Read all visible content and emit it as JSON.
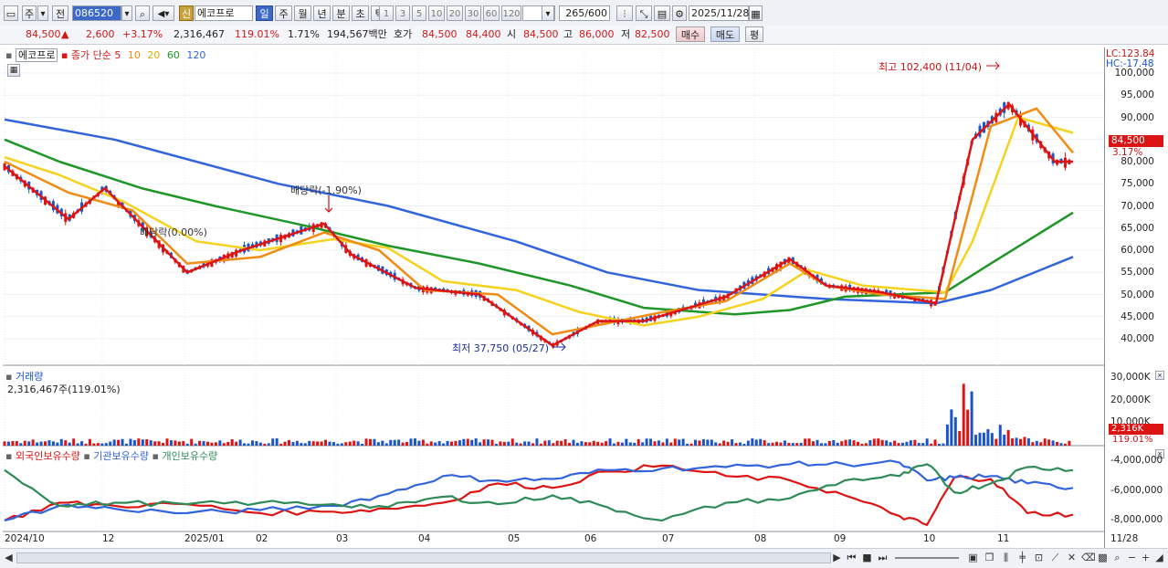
{
  "toolbar": {
    "period_label": "주",
    "price_type_label": "전",
    "code": "086520",
    "badge": "신",
    "name": "에코프로",
    "tabs": [
      "일",
      "주",
      "월",
      "년",
      "분",
      "초",
      "틱"
    ],
    "active_tab": "일",
    "tick_buttons": [
      "1",
      "3",
      "5",
      "10",
      "20",
      "30",
      "60",
      "120"
    ],
    "count": "265",
    "count_total": "/600",
    "date": "2025/11/28"
  },
  "quote": {
    "price": "84,500",
    "change": "2,600",
    "change_pct": "+3.17%",
    "volume": "2,316,467",
    "volume_pct": "119.01%",
    "turnover_pct": "1.71%",
    "amount": "194,567백만",
    "hoga_label": "호가",
    "ask": "84,500",
    "bid": "84,400",
    "open_label": "시",
    "open": "84,500",
    "high_label": "고",
    "high": "86,000",
    "low_label": "저",
    "low": "82,500",
    "buy_label": "매수",
    "sell_label": "매도",
    "avg_label": "평"
  },
  "price_panel": {
    "name_tag": "에코프로",
    "legend_prefix": "종가 단순",
    "ma_periods": [
      "5",
      "10",
      "20",
      "60",
      "120"
    ],
    "ma_colors": [
      "#dc1414",
      "#f08c14",
      "#f5d21e",
      "#1e9628",
      "#3264dc"
    ],
    "lc": "LC:123.84",
    "hc": "HC:-17.48",
    "current_tag": "84,500",
    "current_pct": "3.17%",
    "annot_high": "최고 102,400 (11/04)",
    "annot_low": "최저 37,750 (05/27)",
    "annot_div1": "배당락(-1.90%)",
    "annot_div2": "배당락(0.00%)",
    "y_labels": [
      "100,000",
      "95,000",
      "90,000",
      "85,000",
      "80,000",
      "75,000",
      "70,000",
      "65,000",
      "60,000",
      "55,000",
      "50,000",
      "45,000",
      "40,000"
    ]
  },
  "volume_panel": {
    "title": "거래량",
    "value": "2,316,467주(119.01%)",
    "y_labels": [
      "30,000K",
      "20,000K",
      "10,000K"
    ],
    "current_tag": "2,316K",
    "current_pct": "119.01%"
  },
  "holdings_panel": {
    "legend": [
      "외국인보유수량",
      "기관보유수량",
      "개인보유수량"
    ],
    "colors": [
      "#dc1414",
      "#3264dc",
      "#2e8b57"
    ],
    "y_labels": [
      "-4,000,000",
      "-6,000,000",
      "-8,000,000"
    ]
  },
  "x_axis": {
    "labels": [
      "2024/10",
      "12",
      "2025/01",
      "02",
      "03",
      "04",
      "05",
      "06",
      "07",
      "08",
      "09",
      "10",
      "11"
    ],
    "end_label": "11/28"
  },
  "chart_data": {
    "type": "line",
    "series": [
      {
        "name": "120",
        "values": [
          [
            0,
            89500
          ],
          [
            120,
            85000
          ],
          [
            300,
            75000
          ],
          [
            420,
            70000
          ],
          [
            560,
            62000
          ],
          [
            660,
            55000
          ],
          [
            760,
            51000
          ],
          [
            900,
            49000
          ],
          [
            1020,
            48000
          ],
          [
            1080,
            51000
          ],
          [
            1170,
            58500
          ]
        ]
      },
      {
        "name": "60",
        "values": [
          [
            0,
            85000
          ],
          [
            60,
            80000
          ],
          [
            150,
            74000
          ],
          [
            230,
            70000
          ],
          [
            330,
            65500
          ],
          [
            420,
            61000
          ],
          [
            520,
            57000
          ],
          [
            620,
            52000
          ],
          [
            700,
            47000
          ],
          [
            800,
            45500
          ],
          [
            860,
            46500
          ],
          [
            920,
            49500
          ],
          [
            1030,
            50500
          ],
          [
            1080,
            57000
          ],
          [
            1170,
            68500
          ]
        ]
      },
      {
        "name": "20",
        "values": [
          [
            0,
            81000
          ],
          [
            60,
            77000
          ],
          [
            130,
            71000
          ],
          [
            210,
            62000
          ],
          [
            280,
            60000
          ],
          [
            360,
            62500
          ],
          [
            420,
            60500
          ],
          [
            480,
            53000
          ],
          [
            560,
            51000
          ],
          [
            630,
            46000
          ],
          [
            700,
            43000
          ],
          [
            760,
            45000
          ],
          [
            830,
            49000
          ],
          [
            880,
            55500
          ],
          [
            940,
            52000
          ],
          [
            1030,
            50500
          ],
          [
            1060,
            62000
          ],
          [
            1110,
            90000
          ],
          [
            1170,
            86500
          ]
        ]
      },
      {
        "name": "10",
        "values": [
          [
            0,
            80000
          ],
          [
            70,
            73000
          ],
          [
            140,
            69000
          ],
          [
            200,
            57000
          ],
          [
            280,
            58500
          ],
          [
            350,
            64000
          ],
          [
            410,
            60000
          ],
          [
            460,
            51000
          ],
          [
            540,
            50000
          ],
          [
            600,
            41000
          ],
          [
            660,
            43500
          ],
          [
            720,
            46000
          ],
          [
            790,
            48500
          ],
          [
            860,
            57000
          ],
          [
            900,
            52000
          ],
          [
            960,
            50000
          ],
          [
            1030,
            49000
          ],
          [
            1080,
            88000
          ],
          [
            1130,
            92000
          ],
          [
            1170,
            82000
          ]
        ]
      },
      {
        "name": "5",
        "values": [
          [
            0,
            79000
          ],
          [
            70,
            67000
          ],
          [
            110,
            74000
          ],
          [
            200,
            55000
          ],
          [
            260,
            60000
          ],
          [
            350,
            66000
          ],
          [
            380,
            59000
          ],
          [
            450,
            51500
          ],
          [
            520,
            50000
          ],
          [
            600,
            38500
          ],
          [
            650,
            44000
          ],
          [
            700,
            44000
          ],
          [
            790,
            49500
          ],
          [
            860,
            58000
          ],
          [
            900,
            52000
          ],
          [
            960,
            50500
          ],
          [
            1020,
            48000
          ],
          [
            1060,
            85000
          ],
          [
            1100,
            93000
          ],
          [
            1150,
            80000
          ],
          [
            1170,
            80000
          ]
        ]
      }
    ],
    "ylim": [
      35000,
      103000
    ],
    "holdings": {
      "x": [
        0,
        60,
        120,
        200,
        280,
        360,
        420,
        480,
        540,
        600,
        660,
        720,
        790,
        860,
        920,
        980,
        1010,
        1040,
        1080,
        1120,
        1170
      ],
      "foreign": [
        -8000000,
        -6800000,
        -7000000,
        -6900000,
        -7500000,
        -7400000,
        -7200000,
        -6800000,
        -5500000,
        -5800000,
        -4700000,
        -4300000,
        -5000000,
        -5300000,
        -6300000,
        -7700000,
        -8300000,
        -5100000,
        -5200000,
        -7500000,
        -7600000
      ],
      "institution": [
        -8000000,
        -7000000,
        -7200000,
        -7500000,
        -7300000,
        -7000000,
        -6200000,
        -5000000,
        -5300000,
        -5200000,
        -4600000,
        -4500000,
        -4400000,
        -4200000,
        -4200000,
        -4100000,
        -5300000,
        -5100000,
        -5000000,
        -5500000,
        -5800000
      ],
      "individual": [
        -4600000,
        -7000000,
        -6800000,
        -6900000,
        -6800000,
        -6900000,
        -7100000,
        -6400000,
        -6900000,
        -6300000,
        -7100000,
        -8000000,
        -6800000,
        -6500000,
        -5300000,
        -5000000,
        -4200000,
        -6100000,
        -5500000,
        -4400000,
        -4600000
      ]
    }
  }
}
